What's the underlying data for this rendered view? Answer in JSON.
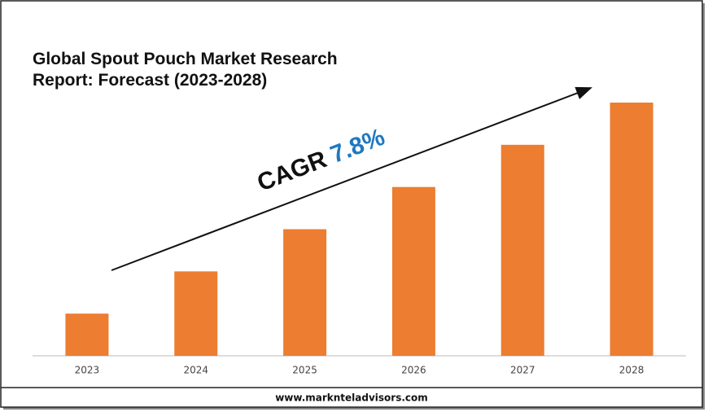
{
  "chart_data": {
    "type": "bar",
    "title": "Global Spout Pouch Market Research Report: Forecast (2023-2028)",
    "categories": [
      "2023",
      "2024",
      "2025",
      "2026",
      "2027",
      "2028"
    ],
    "values": [
      1,
      2,
      3,
      4,
      5,
      6
    ],
    "color": "#ed7d31",
    "annotation_label": "CAGR",
    "annotation_value": "7.8%",
    "footer": "www.marknteladvisors.com"
  }
}
